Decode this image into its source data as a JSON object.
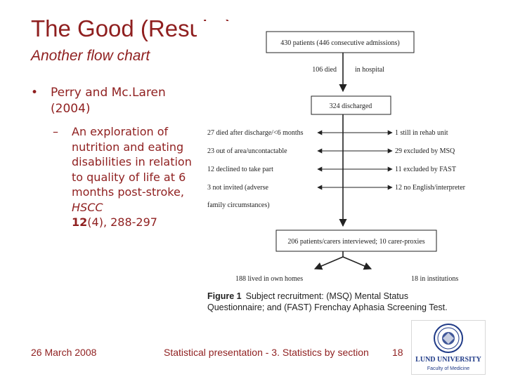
{
  "slide": {
    "title": "The Good (Results)",
    "subtitle": "Another flow chart",
    "bullet_symbol": "•",
    "bullet_text": "Perry and Mc.Laren (2004)",
    "sub_dash": "–",
    "sub_text_main": "An exploration of nutrition and eating disabilities in relation to quality of life at 6 months post-stroke, ",
    "sub_journal": "HSCC",
    "sub_volume": "12",
    "sub_issue": "(4)",
    "sub_pages": ", 288-297",
    "footer_date": "26 March 2008",
    "footer_center": "Statistical presentation - 3. Statistics by section",
    "footer_page": "18"
  },
  "flowchart": {
    "top_box": "430 patients (446 consecutive admissions)",
    "died_count": "106 died",
    "died_place": "in hospital",
    "discharged_box": "324 discharged",
    "left_exits": [
      "27 died after discharge/<6 months",
      "23 out of area/uncontactable",
      "12 declined to take part",
      "3 not invited (adverse",
      "family circumstances)"
    ],
    "right_exits": [
      "1 still in rehab unit",
      "29 excluded by MSQ",
      "11 excluded by FAST",
      "12 no English/interpreter"
    ],
    "interviewed_box": "206 patients/carers interviewed; 10 carer-proxies",
    "own_homes": "188 lived in own homes",
    "institutions": "18 in institutions",
    "caption_bold": "Figure 1",
    "caption_line1": "Subject recruitment: (MSQ) Mental Status",
    "caption_line2": "Questionnaire; and (FAST) Frenchay Aphasia Screening Test."
  },
  "logo": {
    "line1": "LUND UNIVERSITY",
    "line2": "Faculty of Medicine"
  },
  "colors": {
    "accent": "#8f1f1f",
    "diagram_ink": "#222222",
    "logo_blue": "#1f3a87"
  }
}
